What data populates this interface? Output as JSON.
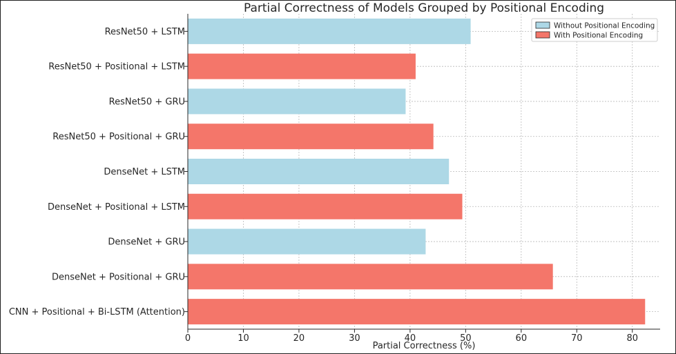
{
  "chart_data": {
    "type": "bar",
    "orientation": "horizontal",
    "title": "Partial Correctness of Models Grouped by Positional Encoding",
    "xlabel": "Partial Correctness (%)",
    "ylabel": "",
    "xlim": [
      0,
      85
    ],
    "x_ticks": [
      0,
      10,
      20,
      30,
      40,
      50,
      60,
      70,
      80
    ],
    "grid": true,
    "legend_position": "top-right",
    "colors": {
      "without": "#add8e6",
      "with": "#f4766a"
    },
    "legend": [
      {
        "label": "Without Positional Encoding",
        "group": "without"
      },
      {
        "label": "With Positional Encoding",
        "group": "with"
      }
    ],
    "categories": [
      "ResNet50 + LSTM",
      "ResNet50 + Positional + LSTM",
      "ResNet50 + GRU",
      "ResNet50 + Positional + GRU",
      "DenseNet + LSTM",
      "DenseNet + Positional + LSTM",
      "DenseNet + GRU",
      "DenseNet + Positional + GRU",
      "CNN + Positional + Bi-LSTM (Attention)"
    ],
    "values": [
      50.9,
      41.0,
      39.2,
      44.2,
      47.0,
      49.4,
      42.8,
      65.7,
      82.3
    ],
    "groups": [
      "without",
      "with",
      "without",
      "with",
      "without",
      "with",
      "without",
      "with",
      "with"
    ]
  }
}
